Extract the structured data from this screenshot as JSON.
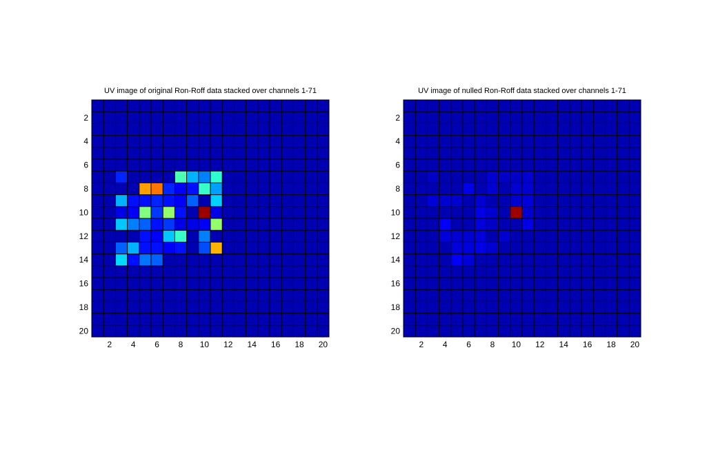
{
  "figure": {
    "background": "#ffffff"
  },
  "chart_data": [
    {
      "type": "heatmap",
      "title": "UV image of original Ron-Roff data stacked over channels 1-71",
      "xlabel": "",
      "ylabel": "",
      "xlim": [
        0.5,
        20.5
      ],
      "ylim": [
        0.5,
        20.5
      ],
      "y_reversed": true,
      "grid": true,
      "xticks": [
        2,
        4,
        6,
        8,
        10,
        12,
        14,
        16,
        18,
        20
      ],
      "yticks": [
        2,
        4,
        6,
        8,
        10,
        12,
        14,
        16,
        18,
        20
      ],
      "colormap": "jet",
      "value_range": [
        0,
        1
      ],
      "base_value": 0.05,
      "cells": [
        [
          3,
          7,
          0.16
        ],
        [
          8,
          7,
          0.45
        ],
        [
          9,
          7,
          0.3
        ],
        [
          10,
          7,
          0.25
        ],
        [
          11,
          7,
          0.42
        ],
        [
          5,
          8,
          0.72
        ],
        [
          6,
          8,
          0.76
        ],
        [
          7,
          8,
          0.16
        ],
        [
          8,
          8,
          0.12
        ],
        [
          9,
          8,
          0.14
        ],
        [
          10,
          8,
          0.43
        ],
        [
          11,
          8,
          0.28
        ],
        [
          3,
          9,
          0.3
        ],
        [
          4,
          9,
          0.14
        ],
        [
          5,
          9,
          0.14
        ],
        [
          6,
          9,
          0.16
        ],
        [
          7,
          9,
          0.14
        ],
        [
          8,
          9,
          0.12
        ],
        [
          9,
          9,
          0.22
        ],
        [
          11,
          9,
          0.33
        ],
        [
          3,
          10,
          0.1
        ],
        [
          4,
          10,
          0.12
        ],
        [
          5,
          10,
          0.5
        ],
        [
          6,
          10,
          0.18
        ],
        [
          7,
          10,
          0.52
        ],
        [
          8,
          10,
          0.14
        ],
        [
          10,
          10,
          0.97
        ],
        [
          11,
          10,
          0.1
        ],
        [
          3,
          11,
          0.32
        ],
        [
          4,
          11,
          0.25
        ],
        [
          5,
          11,
          0.22
        ],
        [
          6,
          11,
          0.14
        ],
        [
          7,
          11,
          0.18
        ],
        [
          8,
          11,
          0.1
        ],
        [
          9,
          11,
          0.1
        ],
        [
          10,
          11,
          0.12
        ],
        [
          11,
          11,
          0.52
        ],
        [
          5,
          12,
          0.14
        ],
        [
          6,
          12,
          0.12
        ],
        [
          7,
          12,
          0.32
        ],
        [
          8,
          12,
          0.43
        ],
        [
          10,
          12,
          0.25
        ],
        [
          3,
          13,
          0.22
        ],
        [
          4,
          13,
          0.3
        ],
        [
          5,
          13,
          0.14
        ],
        [
          6,
          13,
          0.14
        ],
        [
          7,
          13,
          0.12
        ],
        [
          8,
          13,
          0.14
        ],
        [
          10,
          13,
          0.2
        ],
        [
          11,
          13,
          0.7
        ],
        [
          3,
          14,
          0.34
        ],
        [
          4,
          14,
          0.14
        ],
        [
          5,
          14,
          0.24
        ],
        [
          6,
          14,
          0.22
        ]
      ]
    },
    {
      "type": "heatmap",
      "title": "UV image of nulled Ron-Roff data stacked over channels 1-71",
      "xlabel": "",
      "ylabel": "",
      "xlim": [
        0.5,
        20.5
      ],
      "ylim": [
        0.5,
        20.5
      ],
      "y_reversed": true,
      "grid": true,
      "xticks": [
        2,
        4,
        6,
        8,
        10,
        12,
        14,
        16,
        18,
        20
      ],
      "yticks": [
        2,
        4,
        6,
        8,
        10,
        12,
        14,
        16,
        18,
        20
      ],
      "colormap": "jet",
      "value_range": [
        0,
        1
      ],
      "base_value": 0.05,
      "cells": [
        [
          3,
          7,
          0.07
        ],
        [
          8,
          7,
          0.08
        ],
        [
          9,
          7,
          0.07
        ],
        [
          10,
          7,
          0.07
        ],
        [
          11,
          7,
          0.08
        ],
        [
          6,
          8,
          0.1
        ],
        [
          8,
          8,
          0.08
        ],
        [
          10,
          8,
          0.08
        ],
        [
          11,
          8,
          0.08
        ],
        [
          3,
          9,
          0.09
        ],
        [
          4,
          9,
          0.08
        ],
        [
          5,
          9,
          0.08
        ],
        [
          7,
          9,
          0.08
        ],
        [
          10,
          9,
          0.08
        ],
        [
          11,
          9,
          0.09
        ],
        [
          7,
          10,
          0.1
        ],
        [
          8,
          10,
          0.08
        ],
        [
          10,
          10,
          0.97
        ],
        [
          11,
          10,
          0.08
        ],
        [
          4,
          11,
          0.12
        ],
        [
          7,
          11,
          0.09
        ],
        [
          8,
          11,
          0.07
        ],
        [
          11,
          11,
          0.1
        ],
        [
          4,
          12,
          0.09
        ],
        [
          5,
          12,
          0.08
        ],
        [
          6,
          12,
          0.08
        ],
        [
          7,
          12,
          0.09
        ],
        [
          9,
          12,
          0.08
        ],
        [
          5,
          13,
          0.09
        ],
        [
          6,
          13,
          0.09
        ],
        [
          7,
          13,
          0.1
        ],
        [
          8,
          13,
          0.08
        ],
        [
          5,
          14,
          0.12
        ],
        [
          6,
          14,
          0.09
        ]
      ]
    }
  ]
}
